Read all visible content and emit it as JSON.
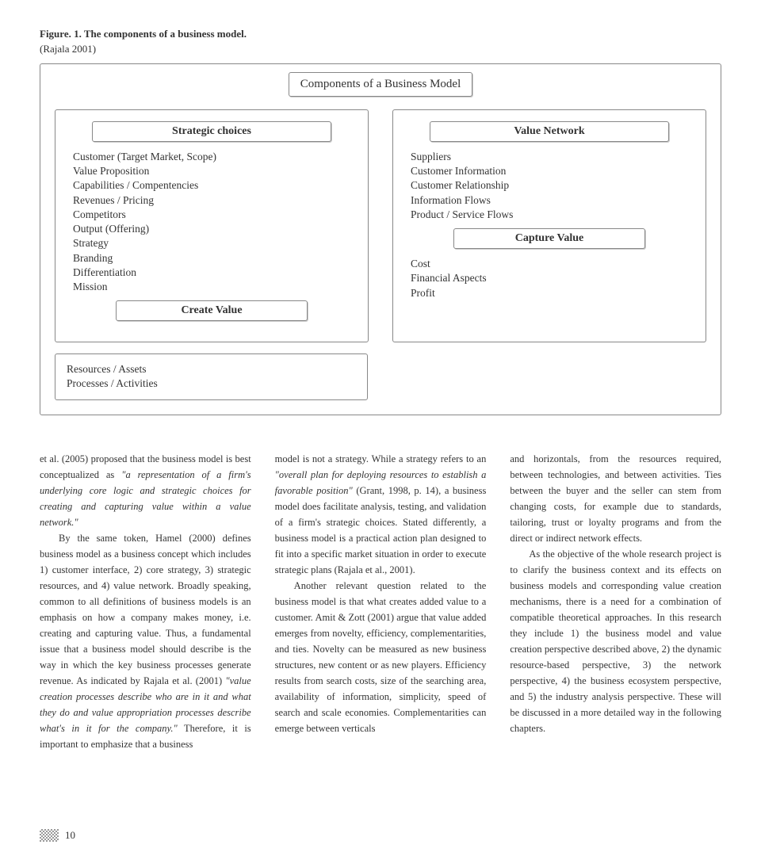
{
  "figure": {
    "caption": "Figure. 1. The components of a business model.",
    "source": "(Rajala 2001)",
    "title": "Components of a Business Model",
    "strategic": {
      "heading": "Strategic choices",
      "items": "Customer (Target Market, Scope)\nValue Proposition\nCapabilities / Compentencies\nRevenues / Pricing\nCompetitors\nOutput (Offering)\nStrategy\nBranding\nDifferentiation\nMission"
    },
    "create": {
      "heading": "Create Value",
      "items": "Resources / Assets\nProcesses / Activities"
    },
    "network": {
      "heading": "Value Network",
      "items": "Suppliers\nCustomer Information\nCustomer Relationship\nInformation Flows\nProduct / Service Flows"
    },
    "capture": {
      "heading": "Capture Value",
      "items": "Cost\nFinancial Aspects\nProfit"
    }
  },
  "body": {
    "col1": {
      "p1a": "et al. (2005) proposed that the business model is best conceptualized as ",
      "p1b": "\"a representation of a firm's underlying core logic and strategic choices for creating and capturing value within a value network.\"",
      "p2a": "By the same token, Hamel (2000) defines business model as a business concept which includes 1) customer interface, 2) core strategy, 3) strategic resources, and 4) value network. Broadly speaking, common to all definitions of business models is an emphasis on how a company makes money, i.e. creating and capturing value. Thus, a fundamental issue that a business model should describe is the way in which the key business processes generate revenue. As indicated by Rajala et al. (2001) ",
      "p2b": "\"value creation processes describe who are in it and what they do and value appropriation processes describe what's in it for the company.\"",
      "p2c": " Therefore, it is important to emphasize that a business"
    },
    "col2": {
      "p1a": "model is not a strategy. While a strategy refers to an ",
      "p1b": "\"overall plan for deploying resources to establish a favorable position\"",
      "p1c": " (Grant, 1998, p. 14), a business model does facilitate analysis, testing, and validation of a firm's strategic choices. Stated differently, a business model is a practical action plan designed to fit into a specific market situation in order to execute strategic plans (Rajala et al., 2001).",
      "p2": "Another relevant question related to the business model is that what creates added value to a customer. Amit & Zott (2001) argue that value added emerges from novelty, efficiency, complementarities, and ties. Novelty can be measured as new business structures, new content or as new players. Efficiency results from search costs, size of the searching area, availability of information, simplicity, speed of search and scale economies. Complementarities can emerge between verticals"
    },
    "col3": {
      "p1": "and horizontals, from the resources required, between technologies, and between activities. Ties between the buyer and the seller can stem from changing costs, for example due to standards, tailoring, trust or loyalty programs and from the direct or indirect network effects.",
      "p2": "As the objective of the whole research project is to clarify the business context and its effects on business models and corresponding value creation mechanisms, there is a need for a combination of compatible theoretical approaches. In this research they include 1) the business model and value creation perspective described above, 2) the dynamic resource-based perspective, 3) the network perspective, 4) the business ecosystem perspective, and 5) the industry analysis perspective. These will be discussed in a more detailed way in the following chapters."
    }
  },
  "page": "10"
}
